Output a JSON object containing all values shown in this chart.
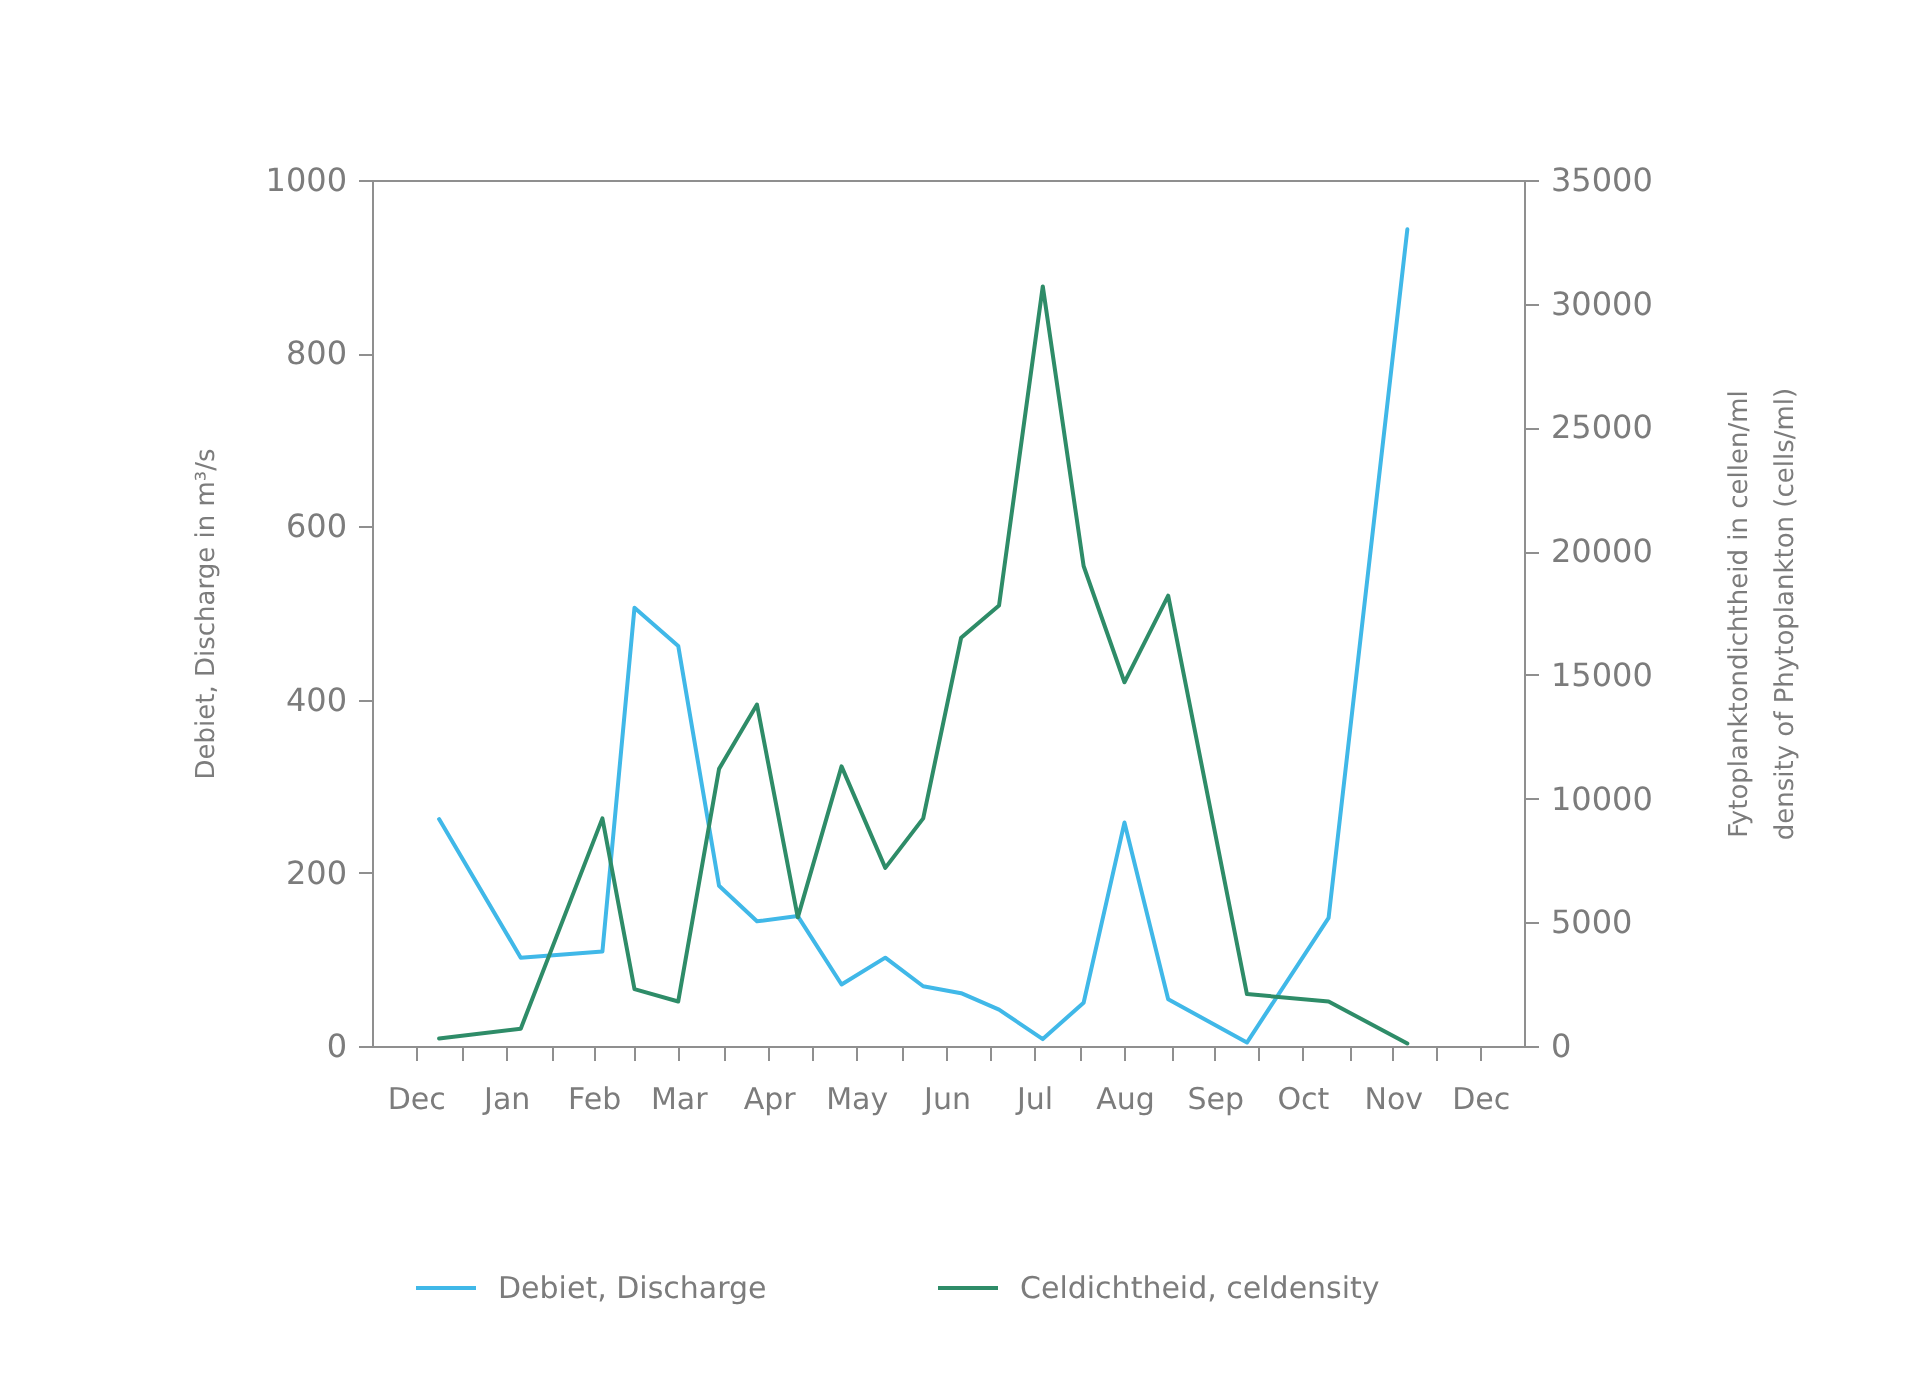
{
  "chart_data": {
    "type": "line",
    "ylabel": "Debiet, Discharge in m³/s",
    "y2label": "Fytoplanktondichtheid in cellen/ml\ndensity of Phytoplankton (cells/ml)",
    "x": [
      "2000-12-24",
      "2001-01-21",
      "2001-02-18",
      "2001-03-01",
      "2001-03-16",
      "2001-03-30",
      "2001-04-12",
      "2001-04-26",
      "2001-05-11",
      "2001-05-26",
      "2001-06-08",
      "2001-06-21",
      "2001-07-04",
      "2001-07-19",
      "2001-08-02",
      "2001-08-16",
      "2001-08-31",
      "2001-09-27",
      "2001-10-25",
      "2001-11-21"
    ],
    "xlim": [
      "2000-12-01",
      "2001-12-31"
    ],
    "xticks": [
      {
        "value": "2000-12-16",
        "label": "Dec"
      },
      {
        "value": "2001-01-01",
        "label": null
      },
      {
        "value": "2001-01-16",
        "label": "Jan"
      },
      {
        "value": "2001-02-01",
        "label": null
      },
      {
        "value": "2001-02-15",
        "label": "Feb"
      },
      {
        "value": "2001-03-01",
        "label": null
      },
      {
        "value": "2001-03-16",
        "label": "Mar"
      },
      {
        "value": "2001-04-01",
        "label": null
      },
      {
        "value": "2001-04-16",
        "label": "Apr"
      },
      {
        "value": "2001-05-01",
        "label": null
      },
      {
        "value": "2001-05-16",
        "label": "May"
      },
      {
        "value": "2001-06-01",
        "label": null
      },
      {
        "value": "2001-06-16",
        "label": "Jun"
      },
      {
        "value": "2001-07-01",
        "label": null
      },
      {
        "value": "2001-07-16",
        "label": "Jul"
      },
      {
        "value": "2001-08-01",
        "label": null
      },
      {
        "value": "2001-08-16",
        "label": "Aug"
      },
      {
        "value": "2001-09-01",
        "label": null
      },
      {
        "value": "2001-09-16",
        "label": "Sep"
      },
      {
        "value": "2001-10-01",
        "label": null
      },
      {
        "value": "2001-10-16",
        "label": "Oct"
      },
      {
        "value": "2001-11-01",
        "label": null
      },
      {
        "value": "2001-11-16",
        "label": "Nov"
      },
      {
        "value": "2001-12-01",
        "label": null
      },
      {
        "value": "2001-12-16",
        "label": "Dec"
      }
    ],
    "ylim": [
      0,
      1000
    ],
    "yticks": [
      0,
      200,
      400,
      600,
      800,
      1000
    ],
    "y2lim": [
      0,
      35000
    ],
    "y2ticks": [
      0,
      5000,
      10000,
      15000,
      20000,
      25000,
      30000,
      35000
    ],
    "series": [
      {
        "name": "Debiet, Discharge",
        "color": "#40b8e8",
        "values": [
          262,
          102,
          109,
          506,
          462,
          185,
          144,
          150,
          71,
          102,
          69,
          61,
          42,
          8,
          50,
          258,
          54,
          4,
          148,
          943
        ]
      },
      {
        "name": "Celdichtheid, celdensity",
        "color": "#2e8c68",
        "axis": "y2",
        "values": [
          300,
          700,
          9200,
          2300,
          1800,
          11200,
          13800,
          5200,
          11300,
          7200,
          9200,
          16500,
          17800,
          30700,
          19400,
          14700,
          18200,
          2100,
          1800,
          100
        ]
      }
    ],
    "legend": "bottom"
  }
}
